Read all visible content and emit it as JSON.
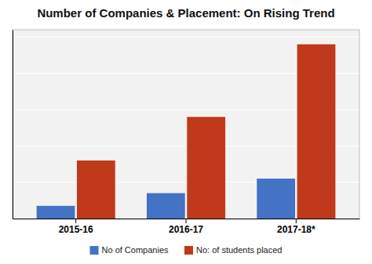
{
  "chart_data": {
    "type": "bar",
    "title": "Number of Companies & Placement: On Rising Trend",
    "categories": [
      "2015-16",
      "2016-17",
      "2017-18*"
    ],
    "series": [
      {
        "name": "No of Companies",
        "color": "#4472C4",
        "values": [
          35,
          70,
          110
        ]
      },
      {
        "name": "No: of students placed",
        "color": "#C0391B",
        "values": [
          160,
          280,
          480
        ]
      }
    ],
    "ylim": [
      0,
      520
    ],
    "yticks": [
      0,
      100,
      200,
      300,
      400,
      500
    ],
    "grid": true,
    "legend": "bottom",
    "tick_labels": "x"
  }
}
